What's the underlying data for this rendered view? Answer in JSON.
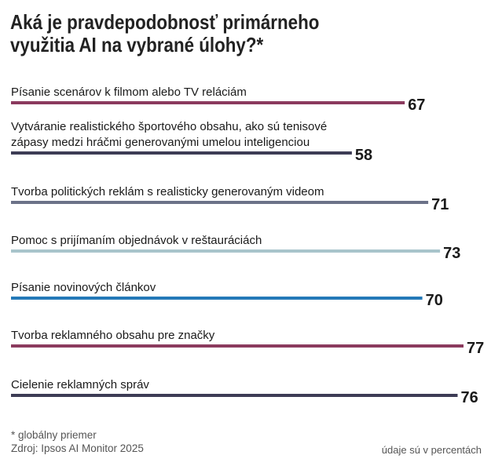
{
  "chart_data": {
    "type": "bar",
    "title_lines": [
      "Aká je pravdepodobnosť primárneho",
      "využitia AI na vybrané úlohy?*"
    ],
    "categories": [
      [
        "Písanie scenárov k filmom alebo TV reláciám"
      ],
      [
        "Vytváranie realistického športového obsahu, ako sú tenisové",
        "zápasy medzi hráčmi generovanými umelou inteligenciou"
      ],
      [
        "Tvorba politických reklám s realisticky generovaným videom"
      ],
      [
        "Pomoc s prijímaním objednávok v reštauráciách"
      ],
      [
        "Písanie novinových článkov"
      ],
      [
        "Tvorba reklamného obsahu pre značky"
      ],
      [
        "Cielenie reklamných správ"
      ]
    ],
    "values": [
      67,
      58,
      71,
      73,
      70,
      77,
      76
    ],
    "bar_colors": [
      "#8b3a5e",
      "#3d3c55",
      "#6c7288",
      "#a8c4cb",
      "#2479b8",
      "#8b3a5e",
      "#3d3c55"
    ],
    "xlim": [
      0,
      77
    ],
    "unit_note": "údaje sú v percentách",
    "footnote": "* globálny priemer",
    "source": "Zdroj: Ipsos AI Monitor 2025"
  }
}
